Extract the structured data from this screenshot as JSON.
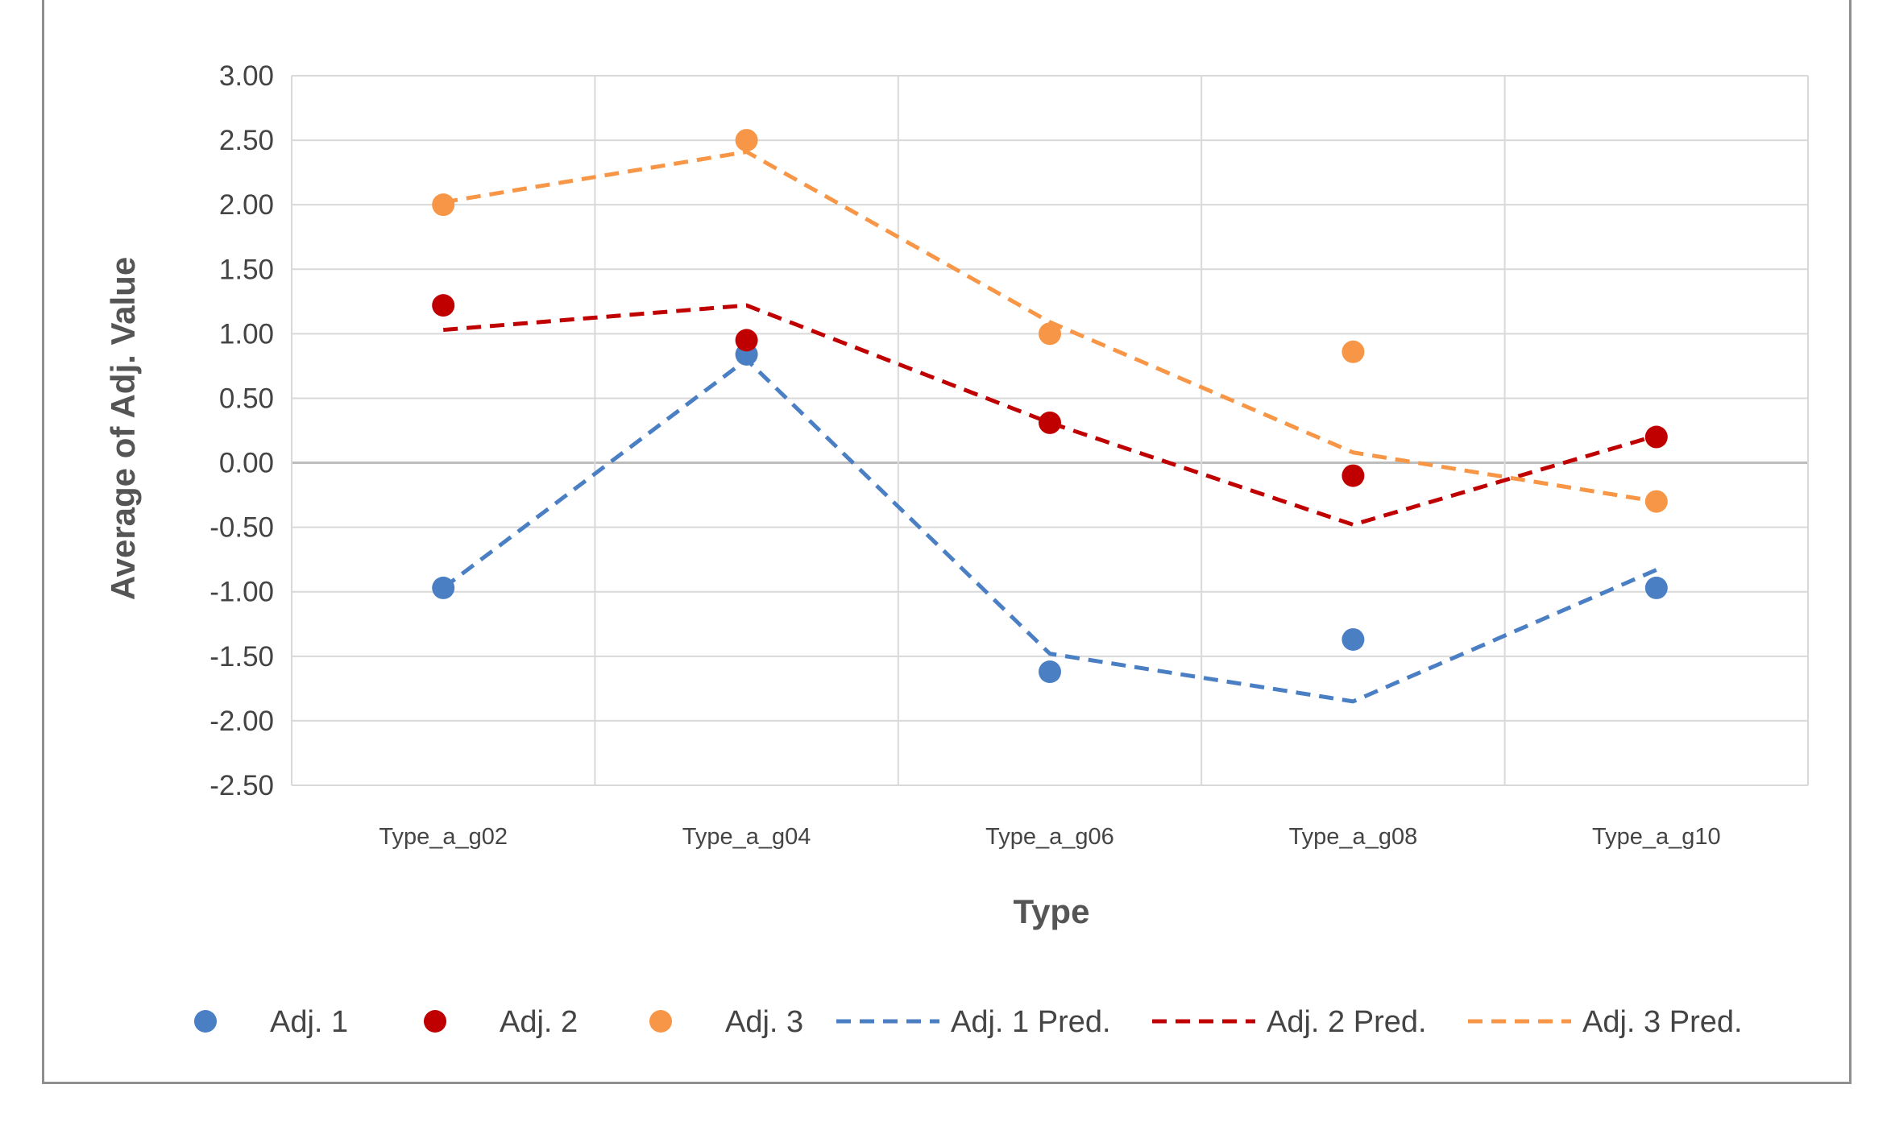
{
  "chart_data": {
    "type": "scatter",
    "title": "",
    "xlabel": "Type",
    "ylabel": "Average of Adj. Value",
    "categories": [
      "Type_a_g02",
      "Type_a_g04",
      "Type_a_g06",
      "Type_a_g08",
      "Type_a_g10"
    ],
    "ylim": [
      -2.5,
      3.0
    ],
    "yticks": [
      "3.00",
      "2.50",
      "2.00",
      "1.50",
      "1.00",
      "0.50",
      "0.00",
      "-0.50",
      "-1.00",
      "-1.50",
      "-2.00",
      "-2.50"
    ],
    "grid": true,
    "legend_position": "bottom",
    "series": [
      {
        "name": "Adj. 1",
        "kind": "points",
        "color": "#4a7fc4",
        "values": [
          -0.97,
          0.84,
          -1.62,
          -1.37,
          -0.97
        ]
      },
      {
        "name": "Adj. 2",
        "kind": "points",
        "color": "#c00000",
        "values": [
          1.22,
          0.95,
          0.31,
          -0.1,
          0.2
        ]
      },
      {
        "name": "Adj. 3",
        "kind": "points",
        "color": "#f79646",
        "values": [
          2.0,
          2.5,
          1.0,
          0.86,
          -0.3
        ]
      },
      {
        "name": "Adj. 1 Pred.",
        "kind": "dashed-line",
        "color": "#4a7fc4",
        "values": [
          -0.97,
          0.8,
          -1.48,
          -1.85,
          -0.83
        ]
      },
      {
        "name": "Adj. 2 Pred.",
        "kind": "dashed-line",
        "color": "#c00000",
        "values": [
          1.03,
          1.22,
          0.31,
          -0.48,
          0.21
        ]
      },
      {
        "name": "Adj. 3 Pred.",
        "kind": "dashed-line",
        "color": "#f79646",
        "values": [
          2.02,
          2.41,
          1.09,
          0.08,
          -0.3
        ]
      }
    ]
  }
}
